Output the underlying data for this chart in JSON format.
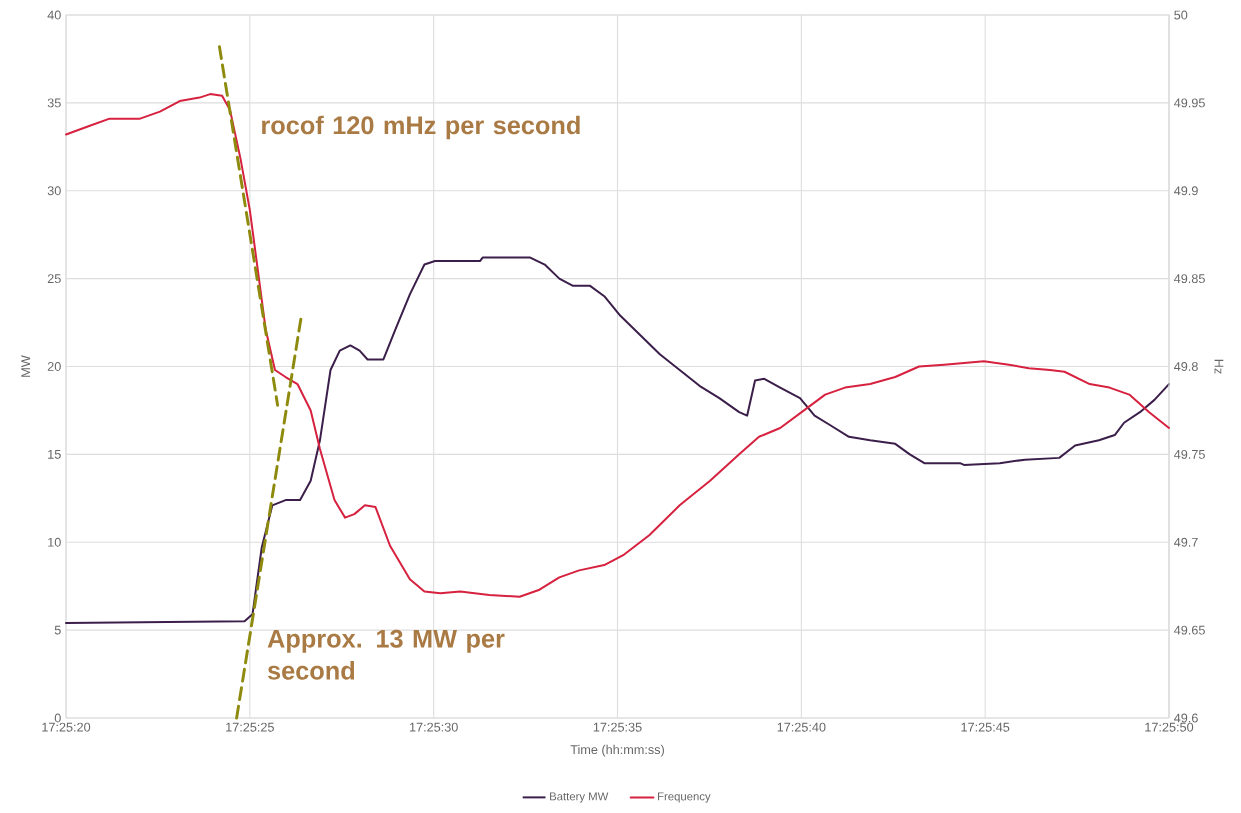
{
  "chart_data": {
    "type": "line",
    "xlabel": "Time (hh:mm:ss)",
    "ylabel": "MW",
    "y2label": "Hz",
    "xlim": [
      17.42222,
      17.43056
    ],
    "xticks": [
      {
        "value": 17.42222,
        "label": "17:25:20"
      },
      {
        "value": 17.42361,
        "label": "17:25:25"
      },
      {
        "value": 17.425,
        "label": "17:25:30"
      },
      {
        "value": 17.42639,
        "label": "17:25:35"
      },
      {
        "value": 17.42778,
        "label": "17:25:40"
      },
      {
        "value": 17.42917,
        "label": "17:25:45"
      },
      {
        "value": 17.43056,
        "label": "17:25:50"
      }
    ],
    "ylim": [
      0,
      40
    ],
    "yticks": [
      0,
      5,
      10,
      15,
      20,
      25,
      30,
      35,
      40
    ],
    "y2lim": [
      49.6,
      50
    ],
    "y2ticks": [
      49.6,
      49.65,
      49.7,
      49.75,
      49.8,
      49.85,
      49.9,
      49.95,
      50
    ],
    "grid": true,
    "legend": "bottom",
    "marker": "none",
    "series": [
      {
        "name": "Battery MW",
        "color": "#3b1f4a",
        "axis": "y",
        "x": [
          17.42222,
          17.42357,
          17.42363,
          17.4237,
          17.42378,
          17.42388,
          17.42399,
          17.42407,
          17.42414,
          17.42422,
          17.42429,
          17.42437,
          17.42444,
          17.4245,
          17.42462,
          17.42471,
          17.42482,
          17.42493,
          17.42501,
          17.42535,
          17.42537,
          17.4255,
          17.42573,
          17.42584,
          17.42595,
          17.42605,
          17.42618,
          17.42629,
          17.42641,
          17.42656,
          17.42671,
          17.42686,
          17.42701,
          17.42716,
          17.42731,
          17.42737,
          17.42743,
          17.4275,
          17.42762,
          17.42777,
          17.42788,
          17.42799,
          17.42814,
          17.4283,
          17.42849,
          17.4286,
          17.42871,
          17.42898,
          17.42901,
          17.42928,
          17.42947,
          17.42973,
          17.42985,
          17.43003,
          17.43015,
          17.43022,
          17.43034,
          17.43045,
          17.43056
        ],
        "values": [
          5.4,
          5.5,
          5.9,
          9.7,
          12.1,
          12.4,
          12.4,
          13.5,
          15.8,
          19.8,
          20.9,
          21.2,
          20.9,
          20.4,
          20.4,
          22.1,
          24.1,
          25.8,
          26,
          26,
          26.2,
          26.2,
          26.2,
          25.8,
          25,
          24.6,
          24.6,
          24,
          22.9,
          21.8,
          20.7,
          19.8,
          18.9,
          18.2,
          17.4,
          17.2,
          19.2,
          19.3,
          18.8,
          18.2,
          17.2,
          16.7,
          16,
          15.8,
          15.6,
          15,
          14.5,
          14.5,
          14.4,
          14.5,
          14.7,
          14.8,
          15.5,
          15.8,
          16.1,
          16.8,
          17.4,
          18.1,
          19
        ]
      },
      {
        "name": "Frequency",
        "color": "#d6213f",
        "axis": "y2",
        "x": [
          17.42222,
          17.4224,
          17.42255,
          17.42278,
          17.42293,
          17.42308,
          17.42323,
          17.42331,
          17.4234,
          17.42346,
          17.42354,
          17.42361,
          17.42367,
          17.42373,
          17.4238,
          17.42388,
          17.42397,
          17.42407,
          17.42414,
          17.42425,
          17.42433,
          17.4244,
          17.42448,
          17.42456,
          17.42467,
          17.42482,
          17.42493,
          17.42505,
          17.4252,
          17.42542,
          17.42565,
          17.4258,
          17.42595,
          17.4261,
          17.42629,
          17.42644,
          17.42663,
          17.42686,
          17.42709,
          17.42731,
          17.42746,
          17.42762,
          17.4278,
          17.42796,
          17.42811,
          17.4283,
          17.42849,
          17.42867,
          17.42886,
          17.42916,
          17.42935,
          17.4295,
          17.42966,
          17.42977,
          17.42996,
          17.43011,
          17.43026,
          17.43041,
          17.43056
        ],
        "values": [
          49.932,
          49.937,
          49.941,
          49.941,
          49.945,
          49.951,
          49.953,
          49.955,
          49.954,
          49.946,
          49.918,
          49.889,
          49.855,
          49.821,
          49.798,
          49.794,
          49.79,
          49.775,
          49.753,
          49.724,
          49.714,
          49.716,
          49.721,
          49.72,
          49.698,
          49.679,
          49.672,
          49.671,
          49.672,
          49.67,
          49.669,
          49.673,
          49.68,
          49.684,
          49.687,
          49.693,
          49.704,
          49.721,
          49.735,
          49.75,
          49.76,
          49.765,
          49.775,
          49.784,
          49.788,
          49.79,
          49.794,
          49.8,
          49.801,
          49.803,
          49.801,
          49.799,
          49.798,
          49.797,
          49.79,
          49.788,
          49.784,
          49.774,
          49.765
        ]
      },
      {
        "color": "#8e8a0d",
        "axis": "y2",
        "line_style": "dashed",
        "x": [
          17.42338,
          17.42382
        ],
        "values": [
          49.982,
          49.778
        ]
      },
      {
        "color": "#8e8a0d",
        "axis": "y",
        "line_style": "dashed",
        "x": [
          17.42351,
          17.424
        ],
        "values": [
          0,
          22.9
        ]
      }
    ],
    "annotations": [
      "rocof 120 mHz per second",
      "Approx. 13 MW per second"
    ]
  }
}
